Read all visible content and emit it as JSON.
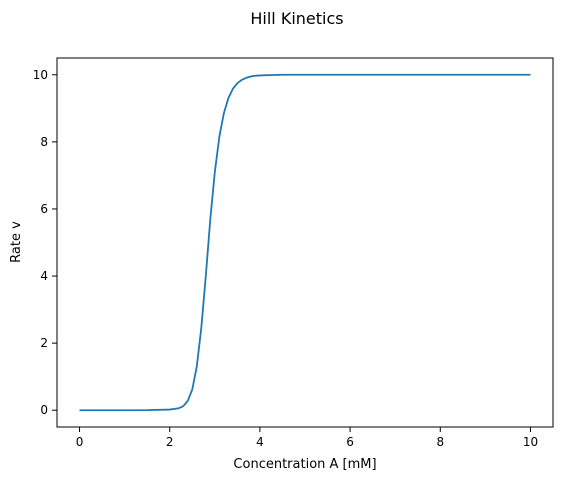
{
  "chart_data": {
    "type": "line",
    "title": "Hill Kinetics",
    "xlabel": "Concentration A [mM]",
    "ylabel": "Rate v",
    "xlim": [
      -0.5,
      10.5
    ],
    "ylim": [
      -0.5,
      10.5
    ],
    "xticks": [
      0,
      2,
      4,
      6,
      8,
      10
    ],
    "yticks": [
      0,
      2,
      4,
      6,
      8,
      10
    ],
    "grid": false,
    "line_color": "#1f77b4",
    "series": [
      {
        "x": [
          0,
          0.5,
          1.0,
          1.5,
          2.0,
          2.2,
          2.3,
          2.4,
          2.5,
          2.6,
          2.7,
          2.8,
          2.9,
          3.0,
          3.1,
          3.2,
          3.3,
          3.4,
          3.5,
          3.6,
          3.7,
          3.8,
          3.9,
          4.0,
          4.2,
          4.5,
          5.0,
          6.0,
          7.0,
          8.0,
          9.0,
          10.0
        ],
        "values": [
          0,
          0,
          0,
          0.002,
          0.02,
          0.06,
          0.12,
          0.28,
          0.62,
          1.3,
          2.45,
          4.0,
          5.7,
          7.1,
          8.15,
          8.85,
          9.3,
          9.58,
          9.75,
          9.85,
          9.91,
          9.95,
          9.97,
          9.98,
          9.99,
          10.0,
          10.0,
          10.0,
          10.0,
          10.0,
          10.0,
          10.0
        ]
      }
    ]
  }
}
